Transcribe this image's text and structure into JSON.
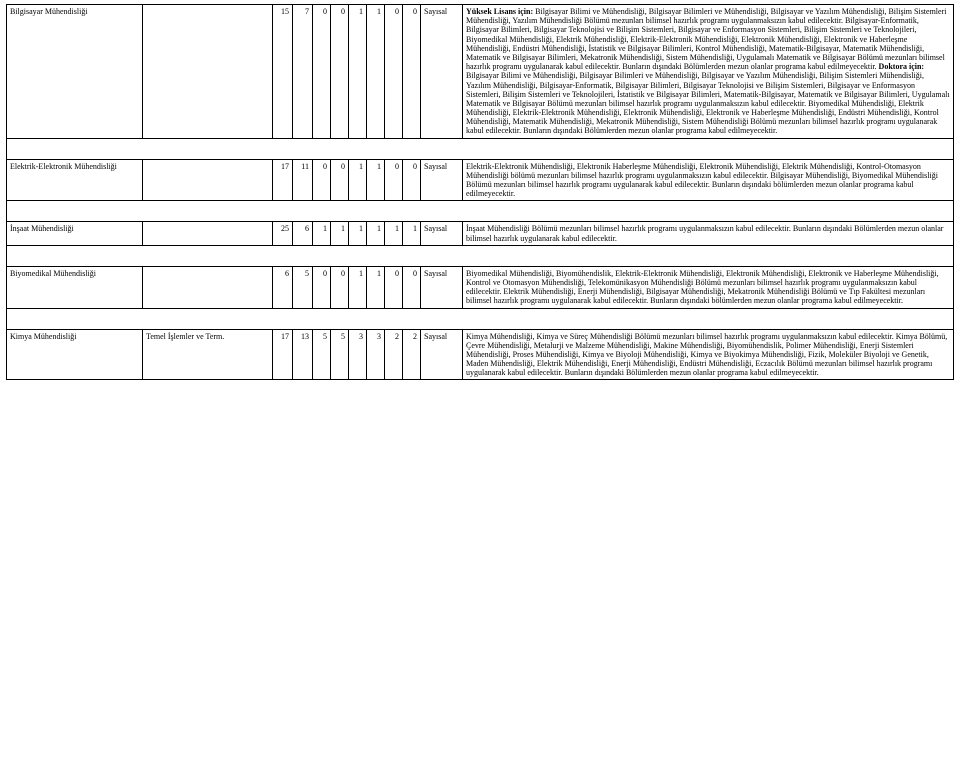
{
  "rows": [
    {
      "label": "Bilgisayar Mühendisliği",
      "sub": "",
      "n": [
        "15",
        "7",
        "0",
        "0",
        "1",
        "1",
        "0",
        "0"
      ],
      "type": "Sayısal",
      "notes_html": "<b>Yüksek Lisans için:</b> Bilgisayar Bilimi ve Mühendisliği, Bilgisayar Bilimleri ve Mühendisliği, Bilgisayar ve Yazılım Mühendisliği, Bilişim Sistemleri Mühendisliği, Yazılım Mühendisliği Bölümü mezunları bilimsel hazırlık programı uygulanmaksızın kabul edilecektir. Bilgisayar-Enformatik, Bilgisayar Bilimleri, Bilgisayar Teknolojisi ve Bilişim Sistemleri, Bilgisayar ve Enformasyon Sistemleri, Bilişim Sistemleri ve Teknolojileri, Biyomedikal Mühendisliği, Elektrik Mühendisliği, Elektrik-Elektronik Mühendisliği, Elektronik Mühendisliği, Elektronik ve Haberleşme Mühendisliği, Endüstri Mühendisliği, İstatistik ve Bilgisayar Bilimleri, Kontrol Mühendisliği, Matematik-Bilgisayar, Matematik Mühendisliği, Matematik ve Bilgisayar Bilimleri, Mekatronik Mühendisliği, Sistem Mühendisliği, Uygulamalı Matematik ve Bilgisayar Bölümü mezunları bilimsel hazırlık programı uygulanarak kabul edilecektir. Bunların dışındaki Bölümlerden mezun olanlar programa kabul edilmeyecektir. <b>Doktora için:</b> Bilgisayar Bilimi ve Mühendisliği, Bilgisayar Bilimleri ve Mühendisliği, Bilgisayar ve Yazılım Mühendisliği, Bilişim Sistemleri Mühendisliği, Yazılım Mühendisliği, Bilgisayar-Enformatik, Bilgisayar Bilimleri, Bilgisayar Teknolojisi ve Bilişim Sistemleri, Bilgisayar ve Enformasyon Sistemleri, Bilişim Sistemleri ve Teknolojileri, İstatistik ve Bilgisayar Bilimleri, Matematik-Bilgisayar, Matematik ve Bilgisayar Bilimleri, Uygulamalı Matematik ve Bilgisayar Bölümü mezunları bilimsel hazırlık programı uygulanmaksızın kabul edilecektir. Biyomedikal Mühendisliği, Elektrik Mühendisliği, Elektrik-Elektronik Mühendisliği, Elektronik Mühendisliği, Elektronik ve Haberleşme Mühendisliği, Endüstri Mühendisliği, Kontrol Mühendisliği, Matematik Mühendisliği, Mekatronik Mühendisliği, Sistem Mühendisliği Bölümü mezunları bilimsel hazırlık programı uygulanarak kabul edilecektir. Bunların dışındaki Bölümlerden mezun olanlar programa kabul edilmeyecektir."
    },
    {
      "label": "Elektrik-Elektronik Mühendisliği",
      "sub": "",
      "n": [
        "17",
        "11",
        "0",
        "0",
        "1",
        "1",
        "0",
        "0"
      ],
      "type": "Sayısal",
      "notes_html": "Elektrik-Elektronik Mühendisliği, Elektronik Haberleşme Mühendisliği, Elektronik Mühendisliği, Elektrik Mühendisliği, Kontrol-Otomasyon Mühendisliği bölümü mezunları bilimsel hazırlık programı uygulanmaksızın kabul edilecektir. Bilgisayar Mühendisliği, Biyomedikal Mühendisliği Bölümü mezunları bilimsel hazırlık programı uygulanarak kabul edilecektir. Bunların dışındaki bölümlerden mezun olanlar programa kabul edilmeyecektir."
    },
    {
      "label": "İnşaat Mühendisliği",
      "sub": "",
      "n": [
        "25",
        "6",
        "1",
        "1",
        "1",
        "1",
        "1",
        "1"
      ],
      "type": "Sayısal",
      "notes_html": "İnşaat Mühendisliği Bölümü mezunları bilimsel hazırlık programı uygulanmaksızın kabul edilecektir. Bunların dışındaki Bölümlerden mezun olanlar bilimsel hazırlık uygulanarak kabul edilecektir."
    },
    {
      "label": "Biyomedikal Mühendisliği",
      "sub": "",
      "n": [
        "6",
        "5",
        "0",
        "0",
        "1",
        "1",
        "0",
        "0"
      ],
      "type": "Sayısal",
      "notes_html": "Biyomedikal Mühendisliği, Biyomühendislik, Elektrik-Elektronik Mühendisliği, Elektronik Mühendisliği, Elektronik ve Haberleşme Mühendisliği, Kontrol ve Otomasyon Mühendisliği, Telekomünikasyon Mühendisliği Bölümü mezunları bilimsel hazırlık programı uygulanmaksızın kabul edilecektir. Elektrik Mühendisliği, Enerji Mühendisliği, Bilgisayar Mühendisliği, Mekatronik Mühendisliği Bölümü ve Tıp Fakültesi mezunları bilimsel hazırlık programı uygulanarak kabul edilecektir. Bunların dışındaki bölümlerden mezun olanlar programa kabul edilmeyecektir."
    },
    {
      "label": "Kimya Mühendisliği",
      "sub": "Temel İşlemler ve Term.",
      "n": [
        "17",
        "13",
        "5",
        "5",
        "3",
        "3",
        "2",
        "2"
      ],
      "type": "Sayısal",
      "notes_html": "Kimya Mühendisliği, Kimya ve Süreç Mühendisliği Bölümü mezunları bilimsel hazırlık programı uygulanmaksızın kabul edilecektir. Kimya Bölümü, Çevre Mühendisliği, Metalurji ve Malzeme Mühendisliği, Makine Mühendisliği, Biyomühendislik, Polimer Mühendisliği, Enerji Sistemleri Mühendisliği, Proses Mühendisliği, Kimya ve Biyoloji Mühendisliği, Kimya ve Biyokimya Mühendisliği, Fizik, Moleküler Biyoloji ve Genetik, Maden Mühendisliği, Elektrik Mühendisliği, Enerji Mühendisliği, Endüstri Mühendisliği, Eczacılık Bölümü mezunları bilimsel hazırlık programı uygulanarak kabul edilecektir. Bunların dışındaki Bölümlerden mezun olanlar programa kabul edilmeyecektir."
    }
  ]
}
